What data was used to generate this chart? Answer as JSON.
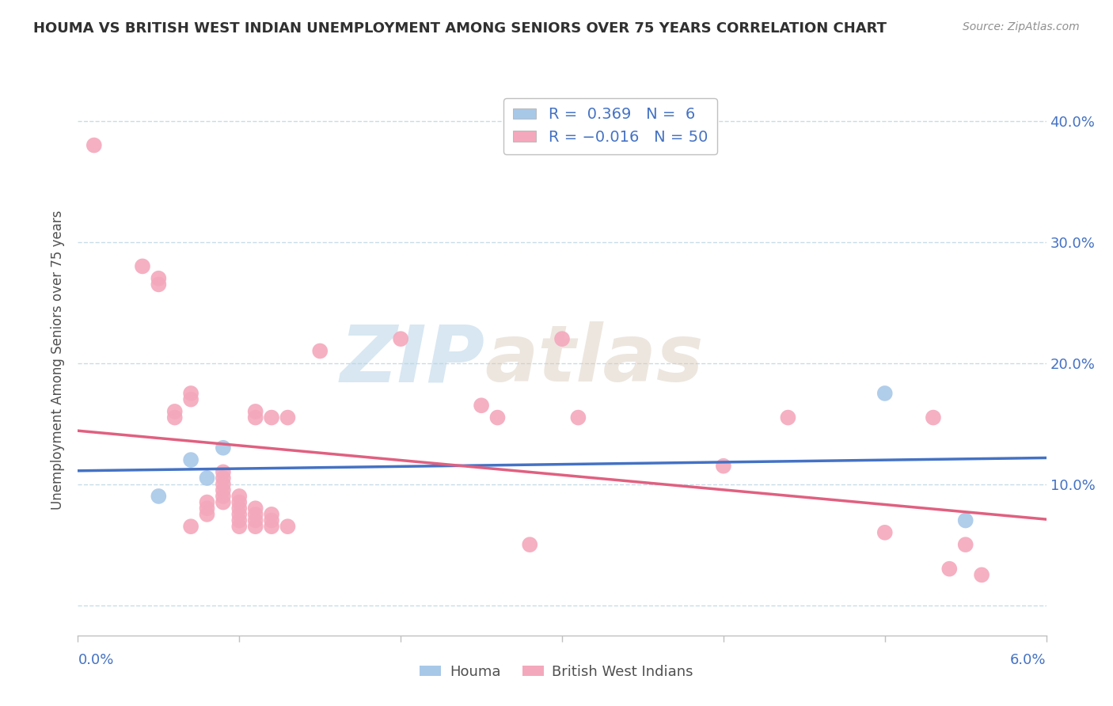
{
  "title": "HOUMA VS BRITISH WEST INDIAN UNEMPLOYMENT AMONG SENIORS OVER 75 YEARS CORRELATION CHART",
  "source": "Source: ZipAtlas.com",
  "ylabel": "Unemployment Among Seniors over 75 years",
  "y_ticks": [
    0.0,
    0.1,
    0.2,
    0.3,
    0.4
  ],
  "y_tick_labels": [
    "",
    "10.0%",
    "20.0%",
    "30.0%",
    "40.0%"
  ],
  "x_lim": [
    0.0,
    0.06
  ],
  "y_lim": [
    -0.025,
    0.43
  ],
  "houma_R": 0.369,
  "houma_N": 6,
  "bwi_R": -0.016,
  "bwi_N": 50,
  "houma_color": "#a8c8e8",
  "bwi_color": "#f4a8bc",
  "houma_line_color": "#4472c4",
  "bwi_line_color": "#e06080",
  "houma_points": [
    [
      0.005,
      0.09
    ],
    [
      0.007,
      0.12
    ],
    [
      0.008,
      0.105
    ],
    [
      0.009,
      0.13
    ],
    [
      0.05,
      0.175
    ],
    [
      0.055,
      0.07
    ]
  ],
  "bwi_points": [
    [
      0.001,
      0.38
    ],
    [
      0.004,
      0.28
    ],
    [
      0.005,
      0.265
    ],
    [
      0.005,
      0.27
    ],
    [
      0.006,
      0.155
    ],
    [
      0.006,
      0.16
    ],
    [
      0.007,
      0.17
    ],
    [
      0.007,
      0.175
    ],
    [
      0.007,
      0.065
    ],
    [
      0.008,
      0.075
    ],
    [
      0.008,
      0.08
    ],
    [
      0.008,
      0.085
    ],
    [
      0.009,
      0.085
    ],
    [
      0.009,
      0.09
    ],
    [
      0.009,
      0.095
    ],
    [
      0.009,
      0.1
    ],
    [
      0.009,
      0.105
    ],
    [
      0.009,
      0.11
    ],
    [
      0.01,
      0.065
    ],
    [
      0.01,
      0.07
    ],
    [
      0.01,
      0.075
    ],
    [
      0.01,
      0.08
    ],
    [
      0.01,
      0.085
    ],
    [
      0.01,
      0.09
    ],
    [
      0.011,
      0.065
    ],
    [
      0.011,
      0.07
    ],
    [
      0.011,
      0.075
    ],
    [
      0.011,
      0.08
    ],
    [
      0.011,
      0.155
    ],
    [
      0.011,
      0.16
    ],
    [
      0.012,
      0.065
    ],
    [
      0.012,
      0.07
    ],
    [
      0.012,
      0.075
    ],
    [
      0.012,
      0.155
    ],
    [
      0.013,
      0.065
    ],
    [
      0.013,
      0.155
    ],
    [
      0.015,
      0.21
    ],
    [
      0.02,
      0.22
    ],
    [
      0.025,
      0.165
    ],
    [
      0.026,
      0.155
    ],
    [
      0.028,
      0.05
    ],
    [
      0.03,
      0.22
    ],
    [
      0.031,
      0.155
    ],
    [
      0.04,
      0.115
    ],
    [
      0.044,
      0.155
    ],
    [
      0.05,
      0.06
    ],
    [
      0.053,
      0.155
    ],
    [
      0.054,
      0.03
    ],
    [
      0.055,
      0.05
    ],
    [
      0.056,
      0.025
    ]
  ],
  "watermark_zip": "ZIP",
  "watermark_atlas": "atlas",
  "background_color": "#ffffff",
  "grid_color": "#c8dce8",
  "axis_color": "#c0c0c0",
  "title_color": "#303030",
  "source_color": "#909090",
  "label_color": "#4472c4",
  "text_color": "#505050"
}
